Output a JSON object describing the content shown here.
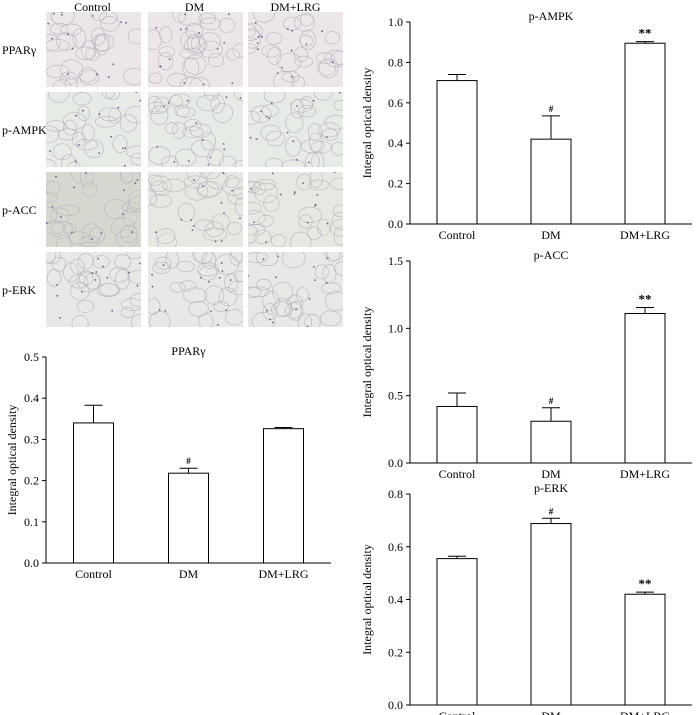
{
  "micrograph_panel": {
    "columns": [
      "Control",
      "DM",
      "DM+LRG"
    ],
    "rows": [
      "PPARγ",
      "p-AMPK",
      "p-ACC",
      "p-ERK"
    ]
  },
  "chart_data": [
    {
      "id": "pparg",
      "type": "bar",
      "title": "PPARγ",
      "xlabel": "",
      "ylabel": "Integral optical density",
      "categories": [
        "Control",
        "DM",
        "DM+LRG"
      ],
      "values": [
        0.34,
        0.218,
        0.326
      ],
      "errors": [
        0.043,
        0.012,
        0.003
      ],
      "annotations": [
        "",
        "#",
        ""
      ],
      "ylim": [
        0,
        0.5
      ],
      "yticks": [
        "0.0",
        "0.1",
        "0.2",
        "0.3",
        "0.4",
        "0.5"
      ]
    },
    {
      "id": "pampk",
      "type": "bar",
      "title": "p-AMPK",
      "xlabel": "",
      "ylabel": "Integral optical density",
      "categories": [
        "Control",
        "DM",
        "DM+LRG"
      ],
      "values": [
        0.71,
        0.42,
        0.895
      ],
      "errors": [
        0.03,
        0.115,
        0.008
      ],
      "annotations": [
        "",
        "#",
        "**"
      ],
      "ylim": [
        0,
        1.0
      ],
      "yticks": [
        "0.0",
        "0.2",
        "0.4",
        "0.6",
        "0.8",
        "1.0"
      ]
    },
    {
      "id": "pacc",
      "type": "bar",
      "title": "p-ACC",
      "xlabel": "",
      "ylabel": "Integral optical density",
      "categories": [
        "Control",
        "DM",
        "DM+LRG"
      ],
      "values": [
        0.42,
        0.31,
        1.11
      ],
      "errors": [
        0.1,
        0.1,
        0.045
      ],
      "annotations": [
        "",
        "#",
        "**"
      ],
      "ylim": [
        0,
        1.5
      ],
      "yticks": [
        "0.0",
        "0.5",
        "1.0",
        "1.5"
      ]
    },
    {
      "id": "perk",
      "type": "bar",
      "title": "p-ERK",
      "xlabel": "",
      "ylabel": "Integral optical density",
      "categories": [
        "Control",
        "DM",
        "DM+LRG"
      ],
      "values": [
        0.555,
        0.688,
        0.42
      ],
      "errors": [
        0.009,
        0.02,
        0.008
      ],
      "annotations": [
        "",
        "#",
        "**"
      ],
      "ylim": [
        0,
        0.8
      ],
      "yticks": [
        "0.0",
        "0.2",
        "0.4",
        "0.6",
        "0.8"
      ]
    }
  ]
}
